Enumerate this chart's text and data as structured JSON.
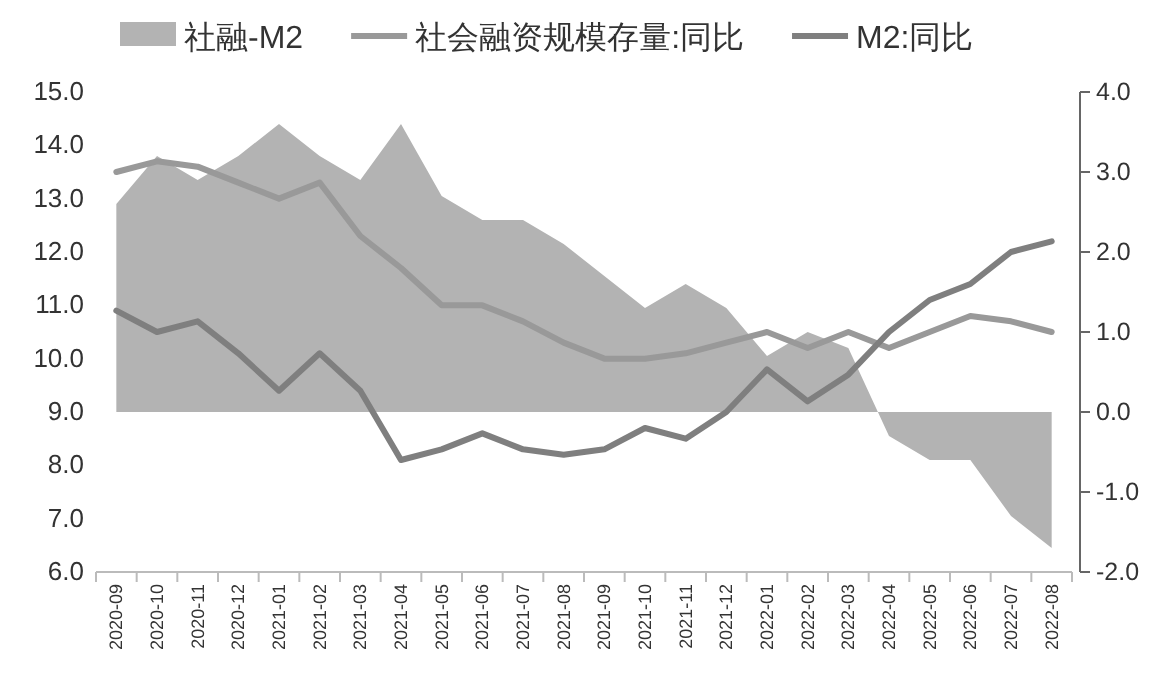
{
  "chart_data": {
    "type": "line",
    "categories": [
      "2020-09",
      "2020-10",
      "2020-11",
      "2020-12",
      "2021-01",
      "2021-02",
      "2021-03",
      "2021-04",
      "2021-05",
      "2021-06",
      "2021-07",
      "2021-08",
      "2021-09",
      "2021-10",
      "2021-11",
      "2021-12",
      "2022-01",
      "2022-02",
      "2022-03",
      "2022-04",
      "2022-05",
      "2022-06",
      "2022-07",
      "2022-08"
    ],
    "series": [
      {
        "name": "社融-M2",
        "type": "area",
        "axis": "y2",
        "color": "#b3b3b3",
        "values": [
          2.6,
          3.2,
          2.9,
          3.2,
          3.6,
          3.2,
          2.9,
          3.6,
          2.7,
          2.4,
          2.4,
          2.1,
          1.7,
          1.3,
          1.6,
          1.3,
          0.7,
          1.0,
          0.8,
          -0.3,
          -0.6,
          -0.6,
          -1.3,
          -1.7
        ]
      },
      {
        "name": "社会融资规模存量:同比",
        "color": "#999999",
        "values": [
          13.5,
          13.7,
          13.6,
          13.3,
          13.0,
          13.3,
          12.3,
          11.7,
          11.0,
          11.0,
          10.7,
          10.3,
          10.0,
          10.0,
          10.1,
          10.3,
          10.5,
          10.2,
          10.5,
          10.2,
          10.5,
          10.8,
          10.7,
          10.5
        ]
      },
      {
        "name": "M2:同比",
        "color": "#7f7f7f",
        "values": [
          10.9,
          10.5,
          10.7,
          10.1,
          9.4,
          10.1,
          9.4,
          8.1,
          8.3,
          8.6,
          8.3,
          8.2,
          8.3,
          8.7,
          8.5,
          9.0,
          9.8,
          9.2,
          9.7,
          10.5,
          11.1,
          11.4,
          12.0,
          12.2
        ]
      }
    ],
    "ylim": [
      6,
      15
    ],
    "yticks": [
      {
        "value": 6,
        "label": "6.0"
      },
      {
        "value": 7,
        "label": "7.0"
      },
      {
        "value": 8,
        "label": "8.0"
      },
      {
        "value": 9,
        "label": "9.0"
      },
      {
        "value": 10,
        "label": "10.0"
      },
      {
        "value": 11,
        "label": "11.0"
      },
      {
        "value": 12,
        "label": "12.0"
      },
      {
        "value": 13,
        "label": "13.0"
      },
      {
        "value": 14,
        "label": "14.0"
      },
      {
        "value": 15,
        "label": "15.0"
      }
    ],
    "y2lim": [
      -2,
      4
    ],
    "y2ticks": [
      {
        "value": -2,
        "label": "-2.0"
      },
      {
        "value": -1,
        "label": "-1.0"
      },
      {
        "value": 0,
        "label": "0.0"
      },
      {
        "value": 1,
        "label": "1.0"
      },
      {
        "value": 2,
        "label": "2.0"
      },
      {
        "value": 3,
        "label": "3.0"
      },
      {
        "value": 4,
        "label": "4.0"
      }
    ],
    "legend": "top",
    "grid": false
  }
}
